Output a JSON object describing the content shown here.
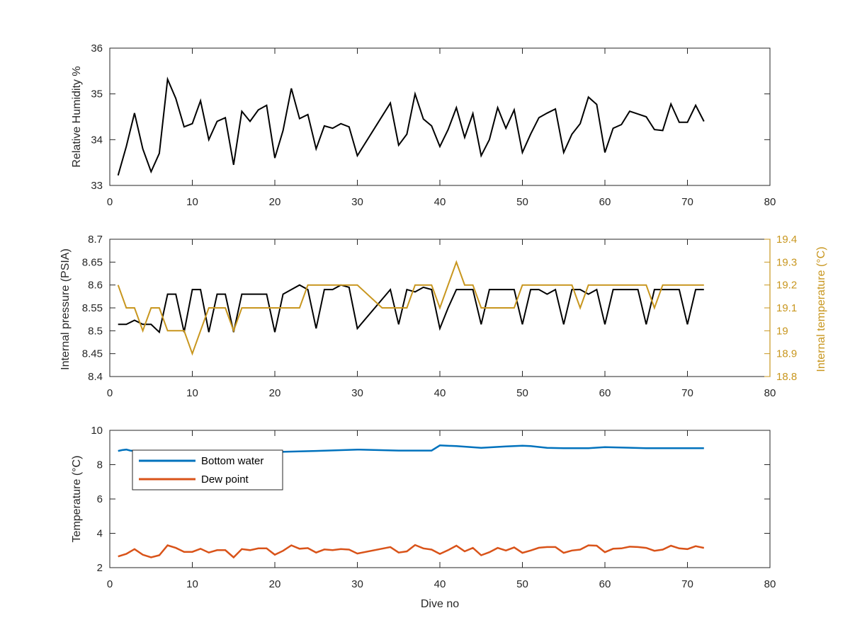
{
  "colors": {
    "axis": "#262626",
    "black_series": "#000000",
    "right_axis": "#C8961E",
    "bottom_water": "#0072BD",
    "dew_point": "#D95319"
  },
  "chart_data": [
    {
      "type": "line",
      "xlabel": "",
      "ylabel": "Relative Humidity %",
      "xlim": [
        0,
        80
      ],
      "ylim": [
        33,
        36
      ],
      "xticks": [
        0,
        10,
        20,
        30,
        40,
        50,
        60,
        70,
        80
      ],
      "yticks": [
        33,
        34,
        35,
        36
      ],
      "ytick_labels": [
        "33",
        "34",
        "35",
        "36"
      ],
      "grid": false,
      "series": [
        {
          "x": [
            1,
            2,
            3,
            4,
            5,
            6,
            7,
            8,
            9,
            10,
            11,
            12,
            13,
            14,
            15,
            16,
            17,
            18,
            19,
            20,
            21,
            22,
            23,
            24,
            25,
            26,
            27,
            28,
            29,
            30,
            34,
            35,
            36,
            37,
            38,
            39,
            40,
            41,
            42,
            43,
            44,
            45,
            46,
            47,
            48,
            49,
            50,
            51,
            52,
            53,
            54,
            55,
            56,
            57,
            58,
            59,
            60,
            61,
            62,
            63,
            64,
            65,
            66,
            67,
            68,
            69,
            70,
            71,
            72
          ],
          "values": [
            33.22,
            33.85,
            34.58,
            33.8,
            33.3,
            33.7,
            35.32,
            34.9,
            34.28,
            34.35,
            34.85,
            34.0,
            34.4,
            34.48,
            33.45,
            34.62,
            34.4,
            34.65,
            34.75,
            33.6,
            34.2,
            35.12,
            34.46,
            34.55,
            33.8,
            34.3,
            34.25,
            34.35,
            34.28,
            33.65,
            34.8,
            33.88,
            34.12,
            35.0,
            34.45,
            34.3,
            33.85,
            34.22,
            34.7,
            34.05,
            34.57,
            33.65,
            34.0,
            34.7,
            34.25,
            34.65,
            33.72,
            34.12,
            34.48,
            34.58,
            34.67,
            33.72,
            34.12,
            34.35,
            34.93,
            34.77,
            33.72,
            34.25,
            34.33,
            34.62,
            34.56,
            34.5,
            34.22,
            34.2,
            34.78,
            34.38,
            34.38,
            34.75,
            34.4
          ]
        }
      ]
    },
    {
      "type": "line",
      "xlabel": "",
      "ylabel": "Internal pressure (PSIA)",
      "ylabel_right": "Internal temperature (°C)",
      "xlim": [
        0,
        80
      ],
      "ylim": [
        8.4,
        8.7
      ],
      "ylim_right": [
        18.8,
        19.4
      ],
      "xticks": [
        0,
        10,
        20,
        30,
        40,
        50,
        60,
        70,
        80
      ],
      "yticks": [
        8.4,
        8.45,
        8.5,
        8.55,
        8.6,
        8.65,
        8.7
      ],
      "ytick_labels": [
        "8.4",
        "8.45",
        "8.5",
        "8.55",
        "8.6",
        "8.65",
        "8.7"
      ],
      "yticks_right": [
        18.8,
        18.9,
        19.0,
        19.1,
        19.2,
        19.3,
        19.4
      ],
      "ytick_labels_right": [
        "18.8",
        "18.9",
        "19",
        "19.1",
        "19.2",
        "19.3",
        "19.4"
      ],
      "grid": false,
      "series": [
        {
          "axis": "left",
          "x": [
            1,
            2,
            3,
            4,
            5,
            6,
            7,
            8,
            9,
            10,
            11,
            12,
            13,
            14,
            15,
            16,
            17,
            18,
            19,
            20,
            21,
            22,
            23,
            24,
            25,
            26,
            27,
            28,
            29,
            30,
            34,
            35,
            36,
            37,
            38,
            39,
            40,
            41,
            42,
            43,
            44,
            45,
            46,
            47,
            48,
            49,
            50,
            51,
            52,
            53,
            54,
            55,
            56,
            57,
            58,
            59,
            60,
            61,
            62,
            63,
            64,
            65,
            66,
            67,
            68,
            69,
            70,
            71,
            72
          ],
          "values": [
            8.514,
            8.514,
            8.523,
            8.514,
            8.514,
            8.497,
            8.58,
            8.58,
            8.497,
            8.59,
            8.59,
            8.497,
            8.58,
            8.58,
            8.497,
            8.58,
            8.58,
            8.58,
            8.58,
            8.497,
            8.58,
            8.59,
            8.6,
            8.59,
            8.505,
            8.59,
            8.59,
            8.6,
            8.595,
            8.505,
            8.59,
            8.514,
            8.59,
            8.585,
            8.595,
            8.59,
            8.505,
            8.55,
            8.59,
            8.59,
            8.59,
            8.514,
            8.59,
            8.59,
            8.59,
            8.59,
            8.514,
            8.59,
            8.59,
            8.58,
            8.59,
            8.514,
            8.59,
            8.59,
            8.58,
            8.59,
            8.514,
            8.59,
            8.59,
            8.59,
            8.59,
            8.514,
            8.59,
            8.59,
            8.59,
            8.59,
            8.514,
            8.59,
            8.59
          ]
        },
        {
          "axis": "right",
          "x": [
            1,
            2,
            3,
            4,
            5,
            6,
            7,
            8,
            9,
            10,
            11,
            12,
            13,
            14,
            15,
            16,
            17,
            18,
            19,
            20,
            21,
            22,
            23,
            24,
            25,
            26,
            27,
            28,
            29,
            30,
            33,
            34,
            35,
            36,
            37,
            38,
            39,
            40,
            41,
            42,
            43,
            44,
            45,
            46,
            47,
            48,
            49,
            50,
            51,
            52,
            53,
            54,
            55,
            56,
            57,
            58,
            59,
            60,
            61,
            62,
            63,
            64,
            65,
            66,
            67,
            68,
            69,
            70,
            71,
            72
          ],
          "values": [
            19.2,
            19.1,
            19.1,
            19.0,
            19.1,
            19.1,
            19.0,
            19.0,
            19.0,
            18.9,
            19.0,
            19.1,
            19.1,
            19.1,
            19.0,
            19.1,
            19.1,
            19.1,
            19.1,
            19.1,
            19.1,
            19.1,
            19.1,
            19.2,
            19.2,
            19.2,
            19.2,
            19.2,
            19.2,
            19.2,
            19.1,
            19.1,
            19.1,
            19.1,
            19.2,
            19.2,
            19.2,
            19.1,
            19.2,
            19.3,
            19.2,
            19.2,
            19.1,
            19.1,
            19.1,
            19.1,
            19.1,
            19.2,
            19.2,
            19.2,
            19.2,
            19.2,
            19.2,
            19.2,
            19.1,
            19.2,
            19.2,
            19.2,
            19.2,
            19.2,
            19.2,
            19.2,
            19.2,
            19.1,
            19.2,
            19.2,
            19.2,
            19.2,
            19.2,
            19.2
          ]
        }
      ]
    },
    {
      "type": "line",
      "xlabel": "Dive no",
      "ylabel": "Temperature (°C)",
      "xlim": [
        0,
        80
      ],
      "ylim": [
        2,
        10
      ],
      "xticks": [
        0,
        10,
        20,
        30,
        40,
        50,
        60,
        70,
        80
      ],
      "yticks": [
        2,
        4,
        6,
        8,
        10
      ],
      "ytick_labels": [
        "2",
        "4",
        "6",
        "8",
        "10"
      ],
      "grid": false,
      "legend": "top-left",
      "series": [
        {
          "name": "Bottom water",
          "x": [
            1,
            1.5,
            2,
            2.5,
            3,
            5,
            10,
            15,
            20,
            25,
            30,
            35,
            39,
            40,
            42,
            45,
            48,
            50,
            51,
            53,
            55,
            58,
            60,
            65,
            70,
            72
          ],
          "values": [
            8.8,
            8.85,
            8.88,
            8.82,
            8.8,
            8.78,
            8.76,
            8.74,
            8.74,
            8.8,
            8.88,
            8.82,
            8.82,
            9.12,
            9.08,
            8.98,
            9.06,
            9.1,
            9.08,
            8.98,
            8.96,
            8.96,
            9.02,
            8.96,
            8.96,
            8.96
          ]
        },
        {
          "name": "Dew point",
          "x": [
            1,
            2,
            3,
            4,
            5,
            6,
            7,
            8,
            9,
            10,
            11,
            12,
            13,
            14,
            15,
            16,
            17,
            18,
            19,
            20,
            21,
            22,
            23,
            24,
            25,
            26,
            27,
            28,
            29,
            30,
            34,
            35,
            36,
            37,
            38,
            39,
            40,
            41,
            42,
            43,
            44,
            45,
            46,
            47,
            48,
            49,
            50,
            51,
            52,
            53,
            54,
            55,
            56,
            57,
            58,
            59,
            60,
            61,
            62,
            63,
            64,
            65,
            66,
            67,
            68,
            69,
            70,
            71,
            72
          ],
          "values": [
            2.65,
            2.8,
            3.08,
            2.75,
            2.6,
            2.72,
            3.3,
            3.15,
            2.92,
            2.92,
            3.1,
            2.88,
            3.02,
            3.02,
            2.6,
            3.08,
            3.02,
            3.12,
            3.12,
            2.75,
            2.98,
            3.3,
            3.1,
            3.14,
            2.88,
            3.06,
            3.02,
            3.08,
            3.05,
            2.82,
            3.2,
            2.88,
            2.95,
            3.32,
            3.12,
            3.05,
            2.8,
            3.02,
            3.28,
            2.95,
            3.15,
            2.72,
            2.9,
            3.15,
            3.0,
            3.18,
            2.86,
            3.0,
            3.16,
            3.2,
            3.2,
            2.86,
            3.0,
            3.05,
            3.3,
            3.28,
            2.9,
            3.1,
            3.12,
            3.22,
            3.2,
            3.15,
            2.98,
            3.05,
            3.28,
            3.12,
            3.08,
            3.25,
            3.15
          ]
        }
      ]
    }
  ]
}
